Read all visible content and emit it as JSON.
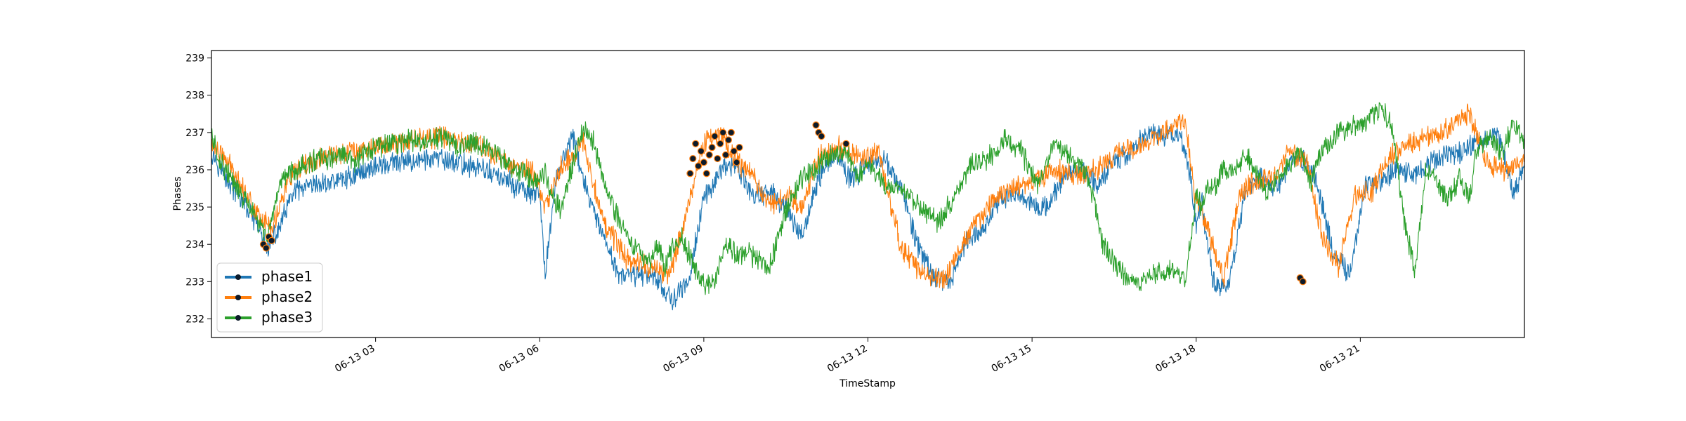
{
  "chart_data": {
    "type": "line",
    "title": "",
    "xlabel": "TimeStamp",
    "ylabel": "Phases",
    "x_unit": "hours since 06-13 00:00",
    "xlim": [
      0,
      24
    ],
    "ylim": [
      231.5,
      239.2
    ],
    "yticks": [
      232,
      233,
      234,
      235,
      236,
      237,
      238,
      239
    ],
    "xticks": [
      {
        "value": 3,
        "label": "06-13 03"
      },
      {
        "value": 6,
        "label": "06-13 06"
      },
      {
        "value": 9,
        "label": "06-13 09"
      },
      {
        "value": 12,
        "label": "06-13 12"
      },
      {
        "value": 15,
        "label": "06-13 15"
      },
      {
        "value": 18,
        "label": "06-13 18"
      },
      {
        "value": 21,
        "label": "06-13 21"
      }
    ],
    "legend": {
      "position": "lower-left",
      "labels": [
        "phase1",
        "phase2",
        "phase3"
      ]
    },
    "colors": {
      "phase1": "#1f77b4",
      "phase2": "#ff7f0e",
      "phase3": "#2ca02c",
      "marker": "#0d1b2a"
    },
    "series": [
      {
        "name": "phase3",
        "x": [
          0.0,
          0.1,
          0.3,
          0.5,
          0.7,
          0.8,
          0.9,
          1.0,
          1.1,
          1.2,
          1.3,
          1.5,
          1.8,
          2.0,
          2.2,
          2.4,
          2.6,
          2.9,
          3.0,
          3.3,
          3.6,
          3.9,
          4.2,
          4.5,
          4.8,
          5.1,
          5.4,
          5.7,
          5.9,
          6.0,
          6.1,
          6.2,
          6.4,
          6.6,
          6.8,
          7.0,
          7.2,
          7.4,
          7.6,
          7.8,
          8.0,
          8.2,
          8.3,
          8.4,
          8.5,
          8.6,
          8.8,
          9.0,
          9.2,
          9.4,
          9.6,
          9.8,
          10.0,
          10.2,
          10.4,
          10.6,
          10.8,
          11.0,
          11.2,
          11.4,
          11.6,
          11.8,
          11.9,
          12.0,
          12.1,
          12.4,
          12.7,
          13.0,
          13.3,
          13.6,
          13.9,
          14.2,
          14.5,
          14.8,
          15.1,
          15.4,
          15.7,
          16.0,
          16.3,
          16.6,
          16.9,
          17.2,
          17.5,
          17.8,
          17.9,
          18.0,
          18.1,
          18.2,
          18.3,
          18.5,
          18.7,
          18.9,
          19.1,
          19.3,
          19.5,
          19.7,
          19.9,
          20.0,
          20.1,
          20.2,
          20.4,
          20.6,
          20.8,
          21.0,
          21.2,
          21.4,
          21.6,
          21.8,
          22.0,
          22.2,
          22.4,
          22.6,
          22.8,
          23.0,
          23.1,
          23.2,
          23.4,
          23.6,
          23.8,
          24.0
        ],
        "values": [
          237.0,
          236.4,
          235.9,
          235.4,
          235.0,
          234.7,
          234.5,
          234.2,
          234.6,
          235.1,
          235.8,
          236.0,
          236.2,
          236.3,
          236.3,
          236.4,
          236.2,
          236.5,
          236.6,
          236.7,
          236.8,
          236.7,
          236.9,
          236.6,
          236.8,
          236.5,
          236.2,
          235.9,
          235.7,
          235.8,
          236.0,
          235.4,
          234.9,
          236.2,
          237.1,
          236.7,
          235.6,
          234.8,
          234.2,
          233.8,
          233.6,
          233.9,
          233.4,
          233.8,
          234.0,
          234.2,
          233.5,
          232.9,
          233.0,
          234.0,
          233.7,
          233.8,
          233.6,
          233.4,
          234.4,
          235.3,
          235.8,
          236.0,
          236.3,
          236.5,
          236.5,
          235.8,
          235.9,
          236.3,
          236.0,
          235.5,
          235.4,
          234.9,
          234.6,
          235.3,
          236.2,
          236.3,
          236.8,
          236.5,
          235.6,
          236.7,
          236.4,
          235.9,
          234.0,
          233.3,
          232.9,
          233.2,
          233.3,
          233.0,
          234.1,
          235.3,
          235.0,
          235.6,
          235.5,
          236.0,
          236.0,
          236.4,
          235.9,
          235.4,
          235.9,
          236.1,
          236.6,
          236.1,
          235.6,
          236.2,
          236.7,
          237.0,
          237.1,
          237.2,
          237.4,
          237.7,
          237.0,
          234.6,
          233.3,
          236.0,
          235.7,
          235.2,
          235.8,
          235.2,
          236.3,
          236.7,
          236.8,
          236.5,
          237.2,
          236.8
        ],
        "display_scale": "x in hours of 06-13"
      },
      {
        "name": "phase1",
        "x": [
          0.0,
          0.3,
          0.6,
          0.9,
          1.0,
          1.2,
          1.5,
          2.0,
          2.5,
          3.0,
          3.5,
          4.0,
          4.5,
          5.0,
          5.5,
          5.9,
          6.0,
          6.1,
          6.3,
          6.6,
          6.9,
          7.2,
          7.5,
          7.8,
          8.1,
          8.4,
          8.7,
          9.0,
          9.3,
          9.6,
          9.9,
          10.2,
          10.5,
          10.8,
          11.1,
          11.4,
          11.7,
          12.0,
          12.3,
          12.6,
          12.9,
          13.2,
          13.5,
          13.8,
          14.1,
          14.4,
          14.7,
          15.0,
          15.3,
          15.6,
          15.9,
          16.2,
          16.5,
          16.8,
          17.1,
          17.4,
          17.7,
          17.9,
          18.0,
          18.1,
          18.3,
          18.6,
          18.9,
          19.2,
          19.5,
          19.8,
          20.0,
          20.2,
          20.5,
          20.8,
          21.1,
          21.4,
          21.7,
          22.0,
          22.3,
          22.6,
          22.9,
          23.2,
          23.5,
          23.8,
          24.0
        ],
        "values": [
          236.5,
          235.7,
          235.1,
          234.3,
          233.9,
          234.3,
          235.4,
          235.6,
          235.8,
          236.1,
          236.2,
          236.3,
          236.2,
          236.0,
          235.6,
          235.3,
          235.3,
          233.2,
          235.8,
          236.9,
          235.2,
          234.0,
          233.1,
          233.2,
          233.2,
          232.5,
          232.9,
          235.2,
          236.0,
          236.1,
          235.3,
          235.4,
          235.0,
          234.2,
          235.8,
          236.5,
          235.7,
          236.2,
          236.3,
          235.5,
          234.0,
          233.1,
          233.0,
          234.1,
          234.4,
          235.2,
          235.4,
          235.1,
          235.0,
          235.9,
          236.0,
          235.6,
          236.3,
          236.4,
          237.0,
          236.9,
          237.0,
          235.8,
          234.4,
          235.2,
          233.0,
          232.9,
          235.5,
          235.8,
          235.5,
          236.3,
          236.2,
          235.7,
          233.8,
          233.2,
          235.6,
          235.7,
          236.1,
          235.8,
          236.2,
          236.4,
          236.5,
          236.8,
          237.0,
          235.4,
          236.1
        ],
        "display_scale": "x in hours of 06-13"
      },
      {
        "name": "phase2",
        "x": [
          0.0,
          0.4,
          0.8,
          1.1,
          1.4,
          1.8,
          2.4,
          3.0,
          3.6,
          4.2,
          4.8,
          5.4,
          5.9,
          6.1,
          6.4,
          6.8,
          7.2,
          7.6,
          8.0,
          8.4,
          8.7,
          9.0,
          9.3,
          9.6,
          9.9,
          10.2,
          10.5,
          10.8,
          11.1,
          11.5,
          11.9,
          12.2,
          12.6,
          13.0,
          13.4,
          13.8,
          14.2,
          14.6,
          15.0,
          15.4,
          15.8,
          16.2,
          16.6,
          17.0,
          17.4,
          17.8,
          18.0,
          18.2,
          18.5,
          18.8,
          19.1,
          19.4,
          19.7,
          20.0,
          20.3,
          20.6,
          20.9,
          21.2,
          21.5,
          21.8,
          22.1,
          22.4,
          22.7,
          23.0,
          23.3,
          23.6,
          24.0
        ],
        "values": [
          236.7,
          236.0,
          234.9,
          234.4,
          235.7,
          236.2,
          236.5,
          236.6,
          236.8,
          236.9,
          236.7,
          236.2,
          235.9,
          235.0,
          236.1,
          236.7,
          234.5,
          233.6,
          233.4,
          233.2,
          235.0,
          236.7,
          237.0,
          236.2,
          235.8,
          235.1,
          235.3,
          235.0,
          236.4,
          236.6,
          236.3,
          236.5,
          233.9,
          233.2,
          233.1,
          234.2,
          235.0,
          235.5,
          235.6,
          236.0,
          235.8,
          236.0,
          236.5,
          236.7,
          237.0,
          237.4,
          235.1,
          234.5,
          233.0,
          235.4,
          235.7,
          235.8,
          236.5,
          236.3,
          234.2,
          233.4,
          235.3,
          235.4,
          236.3,
          236.6,
          236.8,
          237.0,
          237.2,
          237.5,
          236.2,
          236.0,
          236.3
        ],
        "display_scale": "x in hours of 06-13"
      }
    ],
    "anomaly_markers": [
      {
        "x": 0.95,
        "y": 234.0
      },
      {
        "x": 1.0,
        "y": 233.9
      },
      {
        "x": 1.05,
        "y": 234.2
      },
      {
        "x": 1.1,
        "y": 234.1
      },
      {
        "x": 8.75,
        "y": 235.9
      },
      {
        "x": 8.8,
        "y": 236.3
      },
      {
        "x": 8.85,
        "y": 236.7
      },
      {
        "x": 8.9,
        "y": 236.1
      },
      {
        "x": 8.95,
        "y": 236.5
      },
      {
        "x": 9.0,
        "y": 236.2
      },
      {
        "x": 9.05,
        "y": 235.9
      },
      {
        "x": 9.1,
        "y": 236.4
      },
      {
        "x": 9.15,
        "y": 236.6
      },
      {
        "x": 9.2,
        "y": 236.9
      },
      {
        "x": 9.25,
        "y": 236.3
      },
      {
        "x": 9.3,
        "y": 236.7
      },
      {
        "x": 9.35,
        "y": 237.0
      },
      {
        "x": 9.4,
        "y": 236.4
      },
      {
        "x": 9.45,
        "y": 236.8
      },
      {
        "x": 9.5,
        "y": 237.0
      },
      {
        "x": 9.55,
        "y": 236.5
      },
      {
        "x": 9.6,
        "y": 236.2
      },
      {
        "x": 9.65,
        "y": 236.6
      },
      {
        "x": 11.05,
        "y": 237.2
      },
      {
        "x": 11.1,
        "y": 237.0
      },
      {
        "x": 11.15,
        "y": 236.9
      },
      {
        "x": 11.6,
        "y": 236.7
      },
      {
        "x": 19.9,
        "y": 233.1
      },
      {
        "x": 19.95,
        "y": 233.0
      }
    ]
  }
}
